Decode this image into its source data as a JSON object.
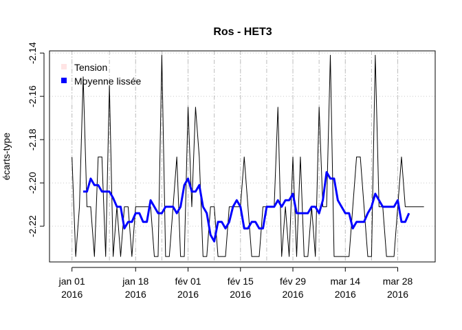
{
  "chart_data": {
    "type": "line",
    "title": "Ros - HET3",
    "xlabel": "",
    "ylabel": "écarts-type",
    "xlim": [
      -6,
      97
    ],
    "ylim": [
      -2.2365,
      -2.139
    ],
    "x_ticks": [
      {
        "x": 0,
        "line1": "jan 01",
        "line2": "2016"
      },
      {
        "x": 17,
        "line1": "jan 18",
        "line2": "2016"
      },
      {
        "x": 31,
        "line1": "fév 01",
        "line2": "2016"
      },
      {
        "x": 45,
        "line1": "fév 15",
        "line2": "2016"
      },
      {
        "x": 59,
        "line1": "fév 29",
        "line2": "2016"
      },
      {
        "x": 73,
        "line1": "mar 14",
        "line2": "2016"
      },
      {
        "x": 87,
        "line1": "mar 28",
        "line2": "2016"
      }
    ],
    "y_ticks": [
      -2.22,
      -2.2,
      -2.18,
      -2.16,
      -2.14
    ],
    "y_tick_labels": [
      "-2.22",
      "-2.20",
      "-2.18",
      "-2.16",
      "-2.14"
    ],
    "vertical_dashed_lines": [
      0,
      10,
      17,
      24,
      31,
      38,
      45,
      52,
      59,
      66,
      73,
      80,
      87
    ],
    "grid": true,
    "legend": {
      "position": "top-left",
      "entries": [
        "Tension",
        "Moyenne lissée"
      ]
    },
    "series": [
      {
        "name": "Tension",
        "color": "#000000",
        "x": [
          0,
          1,
          2,
          3,
          4,
          5,
          6,
          7,
          8,
          9,
          10,
          11,
          12,
          13,
          14,
          15,
          16,
          17,
          18,
          19,
          20,
          21,
          22,
          23,
          24,
          25,
          26,
          27,
          28,
          29,
          30,
          31,
          32,
          33,
          34,
          35,
          36,
          37,
          38,
          39,
          40,
          41,
          42,
          43,
          44,
          45,
          46,
          47,
          48,
          49,
          50,
          51,
          52,
          53,
          54,
          55,
          56,
          57,
          58,
          59,
          60,
          61,
          62,
          63,
          64,
          65,
          66,
          67,
          68,
          69,
          70,
          71,
          72,
          73,
          74,
          75,
          76,
          77,
          78,
          79,
          80,
          81,
          82,
          83,
          84,
          85,
          86,
          87,
          88,
          89,
          90,
          91,
          92,
          93,
          94
        ],
        "values": [
          -2.188,
          -2.234,
          -2.211,
          -2.151,
          -2.211,
          -2.211,
          -2.234,
          -2.188,
          -2.188,
          -2.234,
          -2.155,
          -2.234,
          -2.211,
          -2.234,
          -2.211,
          -2.211,
          -2.234,
          -2.211,
          -2.211,
          -2.211,
          -2.211,
          -2.211,
          -2.234,
          -2.234,
          -2.141,
          -2.234,
          -2.234,
          -2.211,
          -2.188,
          -2.234,
          -2.234,
          -2.165,
          -2.211,
          -2.165,
          -2.188,
          -2.234,
          -2.234,
          -2.211,
          -2.211,
          -2.234,
          -2.234,
          -2.234,
          -2.211,
          -2.211,
          -2.211,
          -2.211,
          -2.188,
          -2.211,
          -2.234,
          -2.234,
          -2.234,
          -2.211,
          -2.211,
          -2.211,
          -2.211,
          -2.165,
          -2.234,
          -2.211,
          -2.234,
          -2.188,
          -2.234,
          -2.188,
          -2.234,
          -2.234,
          -2.211,
          -2.234,
          -2.165,
          -2.211,
          -2.211,
          -2.141,
          -2.234,
          -2.234,
          -2.234,
          -2.234,
          -2.234,
          -2.211,
          -2.188,
          -2.188,
          -2.211,
          -2.234,
          -2.234,
          -2.141,
          -2.211,
          -2.211,
          -2.234,
          -2.234,
          -2.234,
          -2.211,
          -2.188,
          -2.211,
          -2.211,
          -2.211,
          -2.211,
          -2.211,
          -2.211
        ]
      },
      {
        "name": "Moyenne lissée",
        "color": "#0000ff",
        "x": [
          3,
          4,
          5,
          6,
          7,
          8,
          9,
          10,
          11,
          12,
          13,
          14,
          15,
          16,
          17,
          18,
          19,
          20,
          21,
          22,
          23,
          24,
          25,
          26,
          27,
          28,
          29,
          30,
          31,
          32,
          33,
          34,
          35,
          36,
          37,
          38,
          39,
          40,
          41,
          42,
          43,
          44,
          45,
          46,
          47,
          48,
          49,
          50,
          51,
          52,
          53,
          54,
          55,
          56,
          57,
          58,
          59,
          60,
          61,
          62,
          63,
          64,
          65,
          66,
          67,
          68,
          69,
          70,
          71,
          72,
          73,
          74,
          75,
          76,
          77,
          78,
          79,
          80,
          81,
          82,
          83,
          84,
          85,
          86,
          87,
          88,
          89,
          90
        ],
        "values": [
          -2.204,
          -2.204,
          -2.198,
          -2.201,
          -2.201,
          -2.204,
          -2.204,
          -2.204,
          -2.207,
          -2.211,
          -2.211,
          -2.221,
          -2.218,
          -2.218,
          -2.214,
          -2.214,
          -2.218,
          -2.218,
          -2.208,
          -2.211,
          -2.214,
          -2.214,
          -2.211,
          -2.211,
          -2.211,
          -2.214,
          -2.211,
          -2.201,
          -2.198,
          -2.204,
          -2.204,
          -2.201,
          -2.211,
          -2.214,
          -2.224,
          -2.227,
          -2.218,
          -2.218,
          -2.221,
          -2.218,
          -2.211,
          -2.208,
          -2.211,
          -2.221,
          -2.221,
          -2.218,
          -2.218,
          -2.221,
          -2.221,
          -2.211,
          -2.211,
          -2.211,
          -2.208,
          -2.211,
          -2.208,
          -2.208,
          -2.205,
          -2.214,
          -2.214,
          -2.214,
          -2.214,
          -2.211,
          -2.211,
          -2.214,
          -2.208,
          -2.195,
          -2.198,
          -2.198,
          -2.208,
          -2.211,
          -2.214,
          -2.214,
          -2.221,
          -2.218,
          -2.218,
          -2.218,
          -2.214,
          -2.211,
          -2.205,
          -2.208,
          -2.211,
          -2.211,
          -2.211,
          -2.211,
          -2.208,
          -2.218,
          -2.218,
          -2.214
        ]
      }
    ]
  }
}
